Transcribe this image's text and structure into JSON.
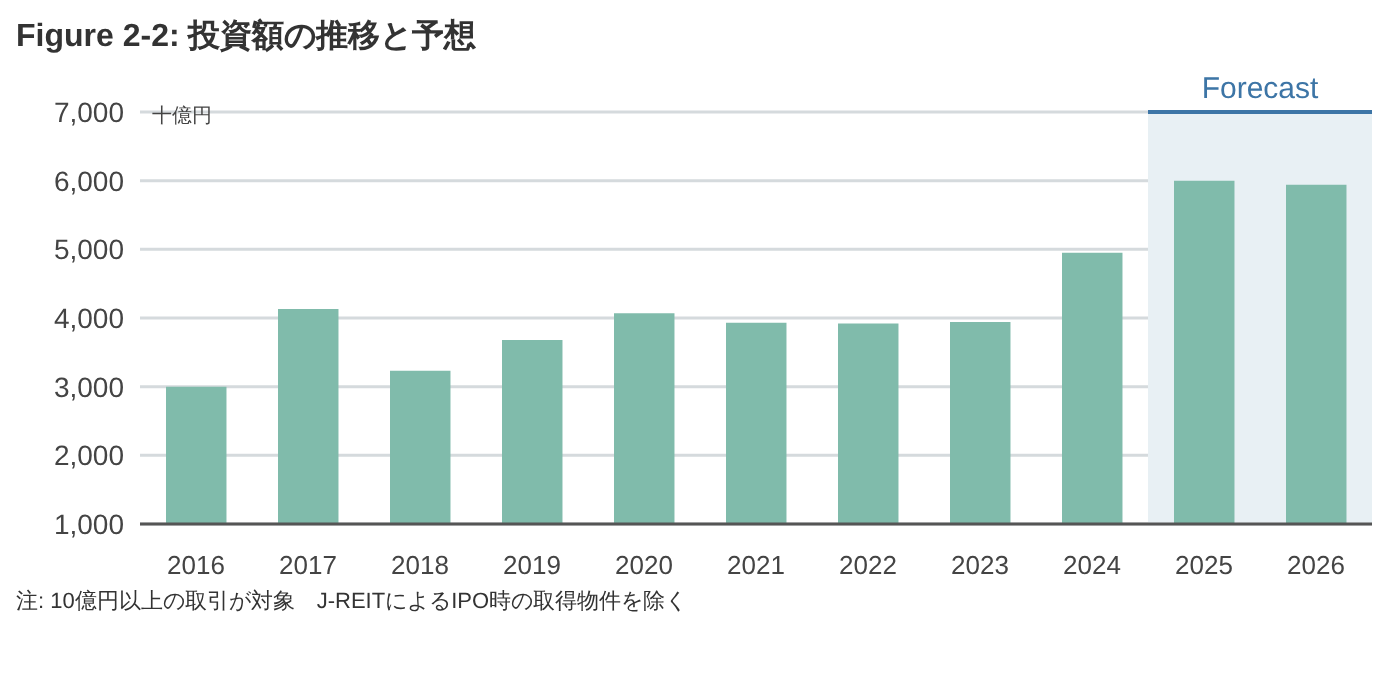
{
  "chart_data": {
    "type": "bar",
    "title": "Figure 2-2: 投資額の推移と予想",
    "ylabel": "十億円",
    "categories": [
      "2016",
      "2017",
      "2018",
      "2019",
      "2020",
      "2021",
      "2022",
      "2023",
      "2024",
      "2025",
      "2026"
    ],
    "values": [
      3000,
      4130,
      3230,
      3680,
      4070,
      3930,
      3920,
      3940,
      4950,
      6000,
      5940
    ],
    "color": "#80bbab",
    "ylim": [
      1000,
      7000
    ],
    "yticks": [
      {
        "value": 1000,
        "label": "1,000"
      },
      {
        "value": 2000,
        "label": "2,000"
      },
      {
        "value": 3000,
        "label": "3,000"
      },
      {
        "value": 4000,
        "label": "4,000"
      },
      {
        "value": 5000,
        "label": "5,000"
      },
      {
        "value": 6000,
        "label": "6,000"
      },
      {
        "value": 7000,
        "label": "7,000"
      }
    ],
    "grid": "y",
    "bands": [
      {
        "axis": "x",
        "from": "2025",
        "to": "2026",
        "label": "Forecast",
        "color": "#e8f0f4"
      }
    ],
    "annotations": [
      "注: 10億円以上の取引が対象　J-REITによるIPO時の取得物件を除く"
    ]
  }
}
